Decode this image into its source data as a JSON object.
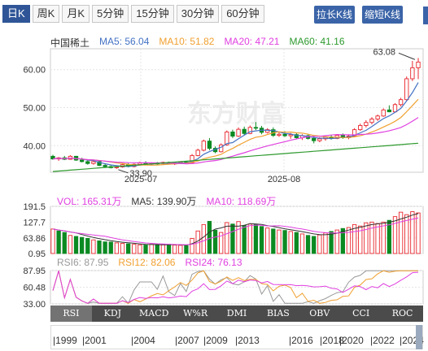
{
  "toolbar": {
    "tabs": [
      {
        "label": "日K",
        "active": true
      },
      {
        "label": "周K",
        "active": false
      },
      {
        "label": "月K",
        "active": false
      },
      {
        "label": "5分钟",
        "active": false
      },
      {
        "label": "15分钟",
        "active": false
      },
      {
        "label": "30分钟",
        "active": false
      },
      {
        "label": "60分钟",
        "active": false
      }
    ],
    "zoom_in_label": "拉长K线",
    "zoom_out_label": "缩短K线"
  },
  "price_legend": {
    "name": "中国稀土",
    "ma5": "MA5: 56.04",
    "ma10": "MA10: 51.82",
    "ma20": "MA20: 47.21",
    "ma60": "MA60: 41.16"
  },
  "volume_legend": {
    "vol": "VOL: 165.31万",
    "ma5": "MA5: 139.90万",
    "ma10": "MA10: 118.69万"
  },
  "rsi_legend": {
    "rsi6": "RSI6: 87.95",
    "rsi12": "RSI12: 82.06",
    "rsi24": "RSI24: 76.13"
  },
  "indicator_tabs": [
    "RSI",
    "KDJ",
    "MACD",
    "W%R",
    "DMI",
    "BIAS",
    "OBV",
    "CCI",
    "ROC"
  ],
  "timeline_labels": [
    "1999",
    "2001",
    "2004",
    "2007",
    "2009",
    "2013",
    "2016",
    "2018",
    "2020",
    "2022",
    "2024"
  ],
  "watermark": "东方财富",
  "colors": {
    "up": "#e8262d",
    "down": "#0c8a22",
    "ma5": "#4472c4",
    "ma10": "#f0a030",
    "ma20": "#e040e0",
    "ma60": "#2e9a2e",
    "accent": "#3b64a8"
  },
  "chart_data": [
    {
      "type": "candlestick",
      "title": "中国稀土",
      "y_ticks": [
        40.0,
        50.0,
        60.0
      ],
      "x_ticks": [
        "2025-07",
        "2025-08"
      ],
      "ylim": [
        33.0,
        65.5
      ],
      "annotations": [
        {
          "text": "63.08",
          "value": 63.08,
          "kind": "max"
        },
        {
          "text": "33.90",
          "value": 33.9,
          "kind": "min"
        }
      ],
      "ohlc": [
        [
          37.2,
          37.6,
          36.3,
          36.5
        ],
        [
          36.5,
          37.0,
          36.0,
          36.8
        ],
        [
          36.8,
          37.3,
          36.2,
          36.4
        ],
        [
          36.4,
          37.5,
          36.3,
          37.2
        ],
        [
          37.2,
          37.3,
          36.0,
          36.2
        ],
        [
          36.2,
          36.8,
          35.6,
          35.8
        ],
        [
          35.8,
          36.2,
          35.0,
          35.3
        ],
        [
          35.3,
          36.0,
          35.0,
          35.8
        ],
        [
          35.8,
          36.0,
          34.6,
          34.8
        ],
        [
          34.8,
          35.2,
          34.2,
          34.5
        ],
        [
          34.5,
          35.0,
          34.0,
          34.2
        ],
        [
          34.2,
          34.6,
          33.9,
          34.4
        ],
        [
          34.4,
          35.2,
          34.2,
          35.0
        ],
        [
          35.0,
          35.4,
          34.3,
          34.5
        ],
        [
          34.5,
          35.3,
          34.3,
          35.1
        ],
        [
          35.1,
          35.8,
          34.8,
          35.5
        ],
        [
          35.5,
          35.9,
          35.0,
          35.2
        ],
        [
          35.2,
          35.6,
          34.9,
          35.4
        ],
        [
          35.4,
          35.7,
          35.0,
          35.3
        ],
        [
          35.3,
          35.8,
          35.1,
          35.6
        ],
        [
          35.6,
          35.8,
          35.1,
          35.2
        ],
        [
          35.2,
          35.6,
          34.9,
          35.4
        ],
        [
          35.4,
          35.9,
          35.2,
          35.7
        ],
        [
          35.7,
          36.0,
          35.3,
          35.5
        ],
        [
          35.5,
          37.8,
          35.4,
          37.4
        ],
        [
          37.4,
          39.2,
          37.2,
          38.8
        ],
        [
          38.8,
          41.6,
          38.5,
          41.2
        ],
        [
          41.2,
          42.0,
          38.8,
          39.3
        ],
        [
          39.3,
          39.8,
          38.0,
          38.4
        ],
        [
          38.4,
          40.6,
          38.2,
          40.2
        ],
        [
          40.2,
          44.0,
          40.0,
          43.6
        ],
        [
          43.6,
          44.2,
          42.0,
          42.5
        ],
        [
          42.5,
          44.8,
          42.3,
          44.3
        ],
        [
          44.3,
          45.0,
          42.8,
          43.2
        ],
        [
          43.2,
          45.3,
          43.0,
          44.8
        ],
        [
          44.8,
          46.2,
          44.1,
          44.6
        ],
        [
          44.6,
          45.2,
          43.0,
          43.5
        ],
        [
          43.5,
          44.6,
          43.2,
          44.2
        ],
        [
          44.2,
          44.8,
          42.3,
          42.7
        ],
        [
          42.7,
          43.6,
          42.3,
          43.0
        ],
        [
          43.0,
          43.8,
          42.3,
          42.6
        ],
        [
          42.6,
          43.3,
          41.8,
          42.9
        ],
        [
          42.9,
          43.4,
          41.8,
          42.1
        ],
        [
          42.1,
          43.0,
          41.5,
          42.6
        ],
        [
          42.6,
          43.1,
          41.6,
          41.9
        ],
        [
          41.9,
          42.6,
          40.6,
          41.3
        ],
        [
          41.3,
          42.2,
          40.9,
          41.8
        ],
        [
          41.8,
          42.5,
          41.3,
          42.3
        ],
        [
          42.3,
          42.8,
          41.6,
          41.9
        ],
        [
          41.9,
          43.0,
          41.7,
          42.7
        ],
        [
          42.7,
          43.2,
          41.8,
          42.1
        ],
        [
          42.1,
          42.8,
          41.7,
          42.5
        ],
        [
          42.5,
          44.6,
          42.3,
          44.2
        ],
        [
          44.2,
          45.8,
          43.9,
          45.3
        ],
        [
          45.3,
          46.7,
          44.8,
          46.1
        ],
        [
          46.1,
          47.5,
          45.6,
          47.0
        ],
        [
          47.0,
          48.2,
          46.5,
          47.8
        ],
        [
          47.8,
          49.8,
          47.6,
          49.4
        ],
        [
          49.4,
          50.6,
          48.8,
          48.9
        ],
        [
          48.9,
          51.2,
          48.7,
          50.8
        ],
        [
          50.8,
          52.6,
          50.3,
          52.1
        ],
        [
          52.1,
          58.2,
          51.8,
          57.6
        ],
        [
          57.6,
          62.3,
          57.0,
          60.5
        ],
        [
          60.5,
          63.08,
          57.5,
          62.0
        ]
      ]
    },
    {
      "type": "bar",
      "title": "VOL",
      "y_ticks": [
        0.95,
        63.86,
        127.7,
        191.5
      ],
      "ylim": [
        0.95,
        191.5
      ],
      "values": [
        100,
        92,
        86,
        74,
        70,
        66,
        62,
        56,
        52,
        48,
        47,
        44,
        42,
        40,
        38,
        36,
        35,
        38,
        37,
        36,
        38,
        35,
        34,
        33,
        62,
        92,
        118,
        131,
        95,
        86,
        126,
        120,
        130,
        114,
        120,
        118,
        110,
        104,
        100,
        96,
        94,
        90,
        86,
        80,
        74,
        70,
        76,
        84,
        90,
        96,
        102,
        106,
        118,
        112,
        125,
        128,
        122,
        128,
        135,
        150,
        168,
        158,
        170,
        165
      ],
      "up": [
        true,
        false,
        false,
        true,
        false,
        false,
        false,
        true,
        false,
        false,
        false,
        true,
        true,
        false,
        true,
        true,
        false,
        true,
        false,
        true,
        false,
        true,
        true,
        false,
        true,
        true,
        true,
        false,
        false,
        true,
        true,
        false,
        true,
        false,
        true,
        false,
        false,
        true,
        false,
        true,
        false,
        true,
        false,
        true,
        false,
        false,
        true,
        true,
        false,
        true,
        false,
        true,
        true,
        true,
        true,
        true,
        true,
        true,
        false,
        true,
        true,
        true,
        true,
        true
      ]
    },
    {
      "type": "line",
      "title": "RSI",
      "y_ticks": [
        33.0,
        60.48,
        87.95
      ],
      "ylim": [
        33.0,
        87.95
      ]
    }
  ]
}
